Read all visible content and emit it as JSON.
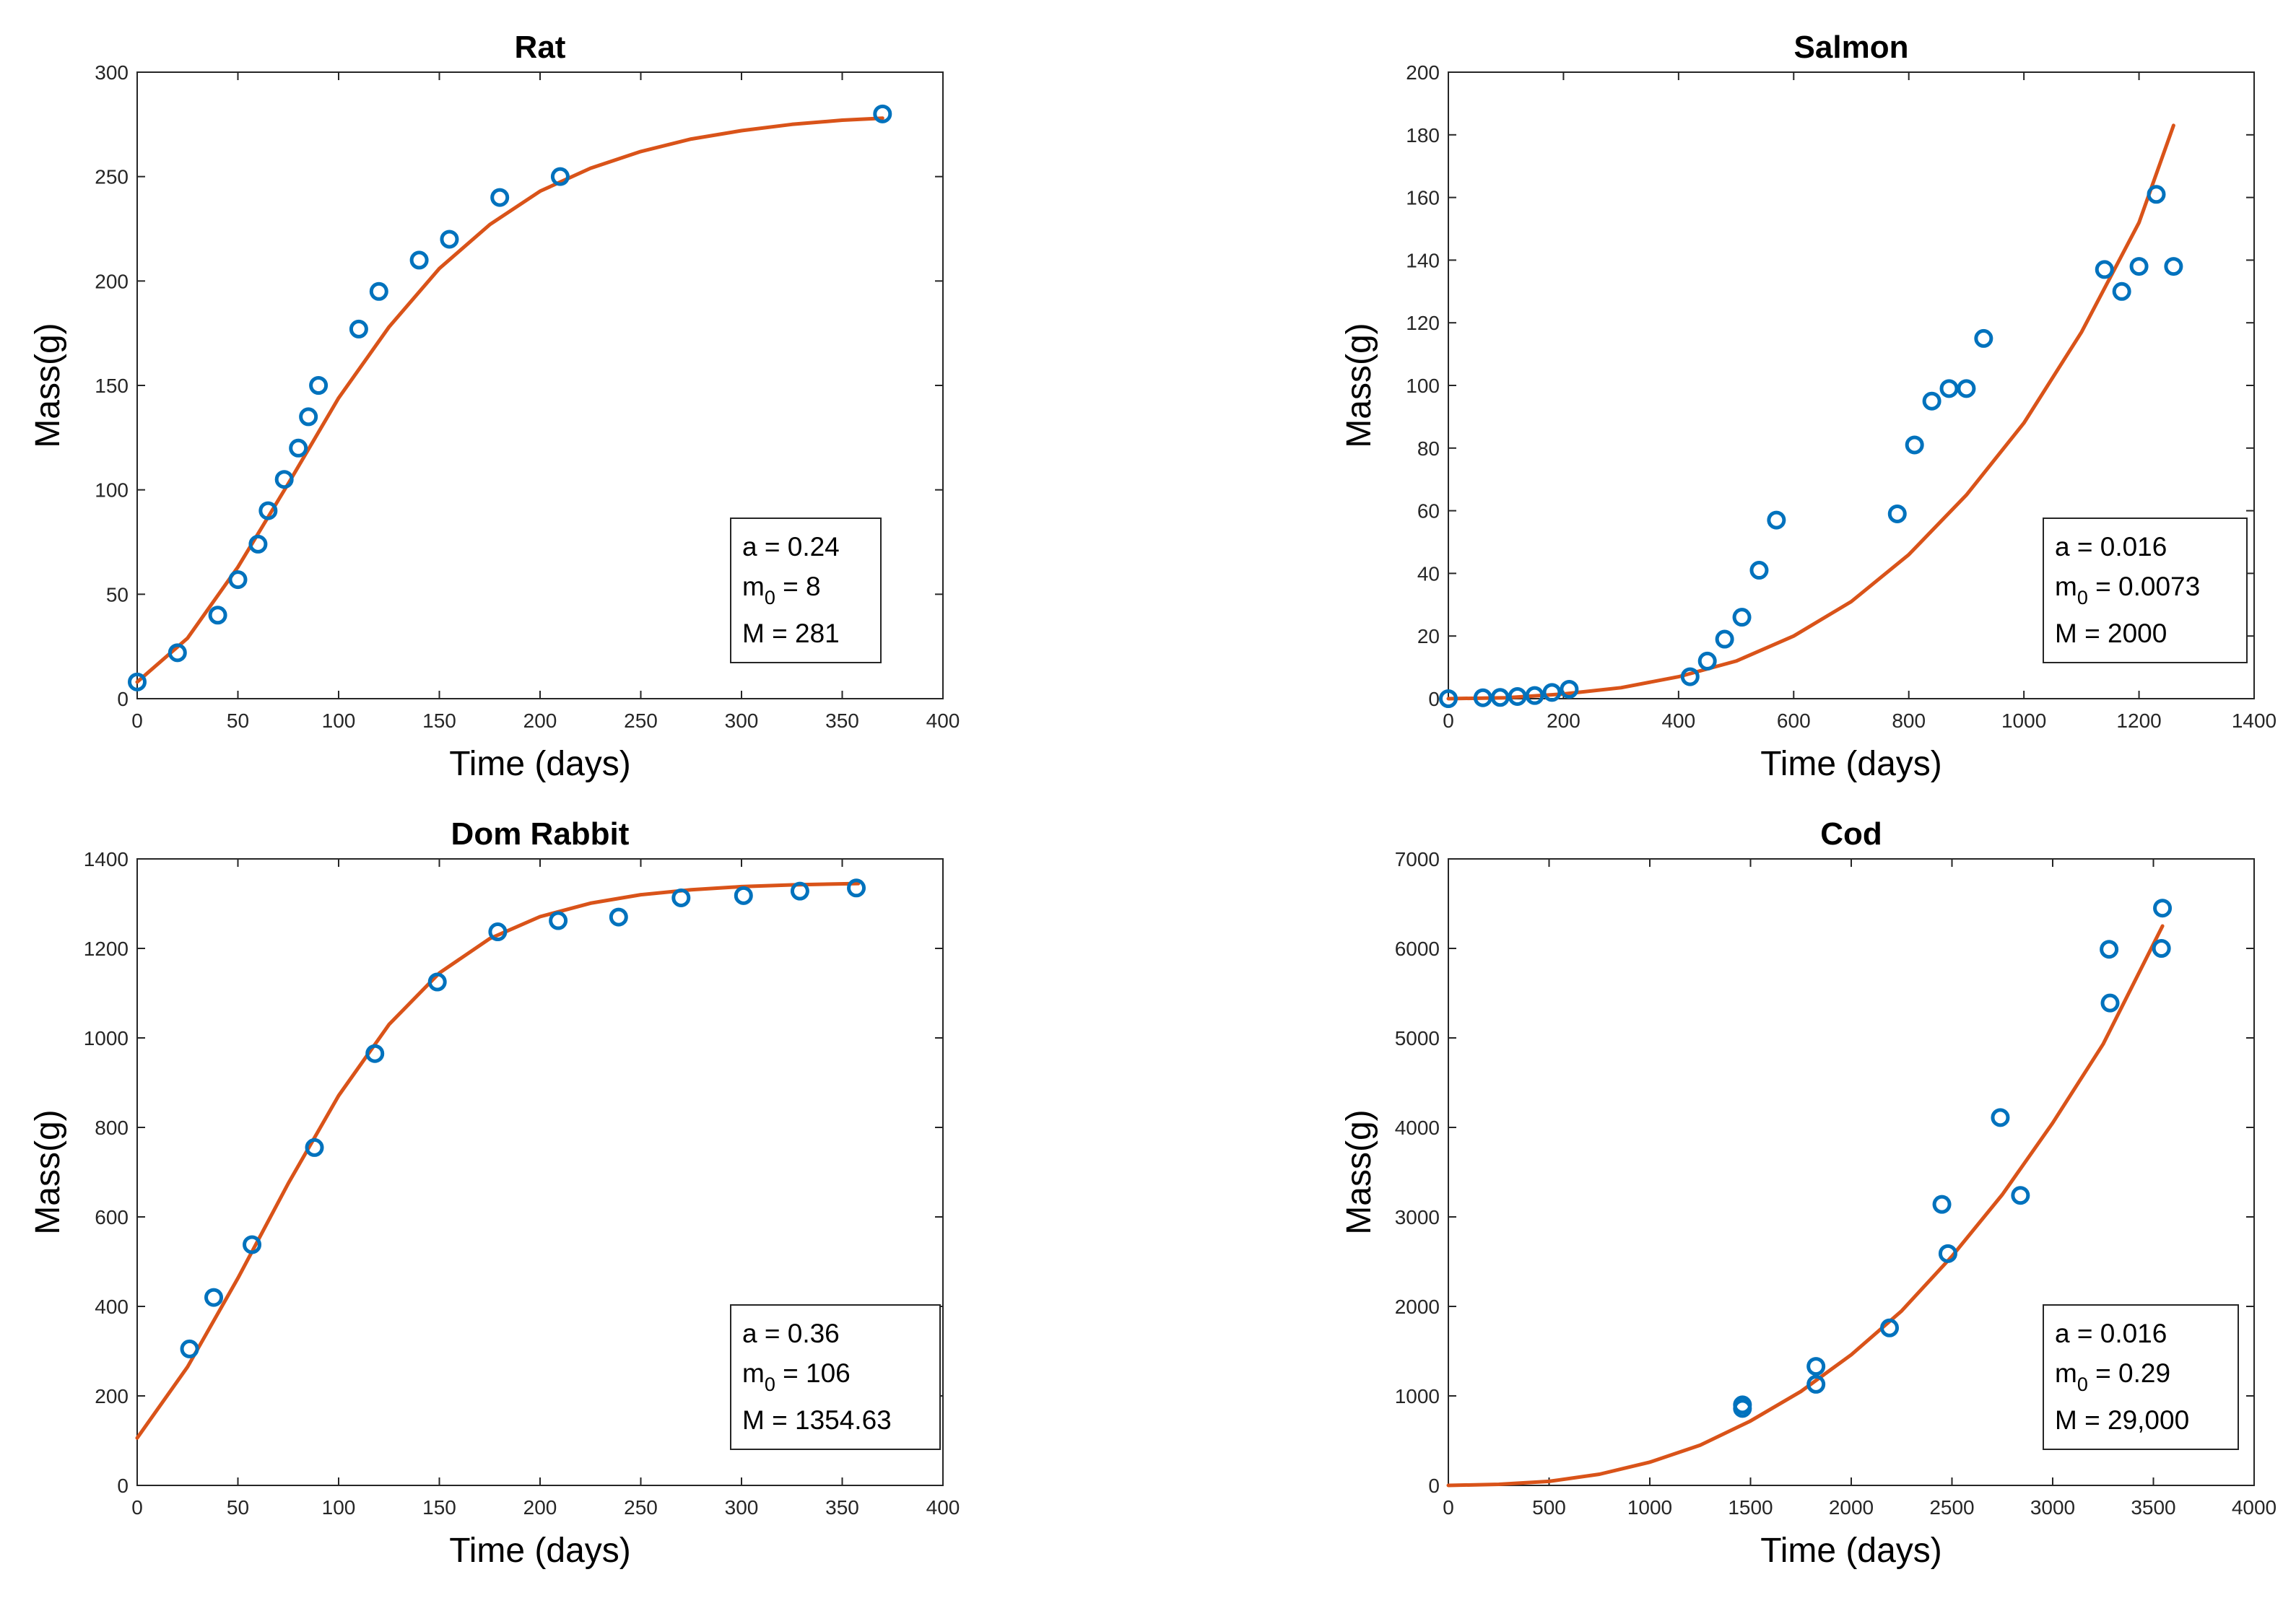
{
  "chart_data": [
    {
      "type": "scatter",
      "title": "Rat",
      "xlabel": "Time (days)",
      "ylabel": "Mass(g)",
      "xlim": [
        0,
        400
      ],
      "ylim": [
        0,
        300
      ],
      "xticks": [
        0,
        50,
        100,
        150,
        200,
        250,
        300,
        350,
        400
      ],
      "yticks": [
        0,
        50,
        100,
        150,
        200,
        250,
        300
      ],
      "xtick_labels": [
        "0",
        "50",
        "100",
        "150",
        "200",
        "250",
        "300",
        "350",
        "400"
      ],
      "ytick_labels": [
        "0",
        "50",
        "100",
        "150",
        "200",
        "250",
        "300"
      ],
      "grid": false,
      "legend": "none",
      "series": [
        {
          "kind": "points",
          "x": [
            0,
            20,
            40,
            50,
            60,
            65,
            73,
            80,
            85,
            90,
            110,
            120,
            140,
            155,
            180,
            210,
            370
          ],
          "y": [
            8,
            22,
            40,
            57,
            74,
            90,
            105,
            120,
            135,
            150,
            177,
            195,
            210,
            220,
            240,
            250,
            280
          ]
        },
        {
          "kind": "fit",
          "x": [
            0,
            25,
            50,
            75,
            100,
            125,
            150,
            175,
            200,
            225,
            250,
            275,
            300,
            325,
            350,
            370
          ],
          "y": [
            8,
            29,
            63,
            103,
            144,
            178,
            206,
            227,
            243,
            254,
            262,
            268,
            272,
            275,
            277,
            278
          ]
        }
      ],
      "annotation": {
        "a_line": "a = 0.24",
        "m_base": "m",
        "m_sub": "0",
        "m_value": " = 8",
        "M_line": "M = 281"
      }
    },
    {
      "type": "scatter",
      "title": "Salmon",
      "xlabel": "Time (days)",
      "ylabel": "Mass(g)",
      "xlim": [
        0,
        1400
      ],
      "ylim": [
        0,
        200
      ],
      "xticks": [
        0,
        200,
        400,
        600,
        800,
        1000,
        1200,
        1400
      ],
      "yticks": [
        0,
        20,
        40,
        60,
        80,
        100,
        120,
        140,
        160,
        180,
        200
      ],
      "xtick_labels": [
        "0",
        "200",
        "400",
        "600",
        "800",
        "1000",
        "1200",
        "1400"
      ],
      "ytick_labels": [
        "0",
        "20",
        "40",
        "60",
        "80",
        "100",
        "120",
        "140",
        "160",
        "180",
        "200"
      ],
      "grid": false,
      "legend": "none",
      "series": [
        {
          "kind": "points",
          "x": [
            0,
            60,
            90,
            120,
            150,
            180,
            210,
            420,
            450,
            480,
            510,
            540,
            570,
            780,
            810,
            840,
            870,
            900,
            930,
            1140,
            1170,
            1200,
            1230,
            1260
          ],
          "y": [
            0,
            0.3,
            0.4,
            0.7,
            1,
            2,
            3,
            7,
            12,
            19,
            26,
            41,
            57,
            59,
            81,
            95,
            99,
            99,
            115,
            137,
            130,
            138,
            161,
            138
          ]
        },
        {
          "kind": "fit",
          "x": [
            0,
            100,
            200,
            300,
            400,
            500,
            600,
            700,
            800,
            900,
            1000,
            1100,
            1200,
            1260
          ],
          "y": [
            0,
            0.3,
            1.5,
            3.5,
            7,
            12,
            20,
            31,
            46,
            65,
            88,
            117,
            152,
            183
          ]
        }
      ],
      "annotation": {
        "a_line": "a = 0.016",
        "m_base": "m",
        "m_sub": "0",
        "m_value": " = 0.0073",
        "M_line": "M = 2000"
      }
    },
    {
      "type": "scatter",
      "title": "Dom Rabbit",
      "xlabel": "Time (days)",
      "ylabel": "Mass(g)",
      "xlim": [
        0,
        400
      ],
      "ylim": [
        0,
        1400
      ],
      "xticks": [
        0,
        50,
        100,
        150,
        200,
        250,
        300,
        350,
        400
      ],
      "yticks": [
        0,
        200,
        400,
        600,
        800,
        1000,
        1200,
        1400
      ],
      "xtick_labels": [
        "0",
        "50",
        "100",
        "150",
        "200",
        "250",
        "300",
        "350",
        "400"
      ],
      "ytick_labels": [
        "0",
        "200",
        "400",
        "600",
        "800",
        "1000",
        "1200",
        "1400"
      ],
      "grid": false,
      "legend": "none",
      "series": [
        {
          "kind": "points",
          "x": [
            26,
            38,
            57,
            88,
            118,
            149,
            179,
            209,
            239,
            270,
            301,
            329,
            357
          ],
          "y": [
            305,
            420,
            538,
            755,
            965,
            1125,
            1237,
            1262,
            1270,
            1313,
            1318,
            1328,
            1335
          ]
        },
        {
          "kind": "fit",
          "x": [
            0,
            25,
            50,
            75,
            100,
            125,
            150,
            175,
            200,
            225,
            250,
            275,
            300,
            325,
            358
          ],
          "y": [
            106,
            265,
            463,
            675,
            871,
            1030,
            1145,
            1222,
            1271,
            1301,
            1320,
            1331,
            1338,
            1342,
            1345
          ]
        }
      ],
      "annotation": {
        "a_line": "a = 0.36",
        "m_base": "m",
        "m_sub": "0",
        "m_value": " = 106",
        "M_line": "M = 1354.63"
      }
    },
    {
      "type": "scatter",
      "title": "Cod",
      "xlabel": "Time (days)",
      "ylabel": "Mass(g)",
      "xlim": [
        0,
        4000
      ],
      "ylim": [
        0,
        7000
      ],
      "xticks": [
        0,
        500,
        1000,
        1500,
        2000,
        2500,
        3000,
        3500,
        4000
      ],
      "yticks": [
        0,
        1000,
        2000,
        3000,
        4000,
        5000,
        6000,
        7000
      ],
      "xtick_labels": [
        "0",
        "500",
        "1000",
        "1500",
        "2000",
        "2500",
        "3000",
        "3500",
        "4000"
      ],
      "ytick_labels": [
        "0",
        "1000",
        "2000",
        "3000",
        "4000",
        "5000",
        "6000",
        "7000"
      ],
      "grid": false,
      "legend": "none",
      "series": [
        {
          "kind": "points",
          "x": [
            1460,
            1460,
            1825,
            1825,
            2190,
            2450,
            2480,
            2740,
            2840,
            3280,
            3285,
            3540,
            3545
          ],
          "y": [
            860,
            900,
            1130,
            1330,
            1760,
            3140,
            2590,
            4110,
            3240,
            5990,
            5390,
            6000,
            6450
          ]
        },
        {
          "kind": "fit",
          "x": [
            0,
            250,
            500,
            750,
            1000,
            1250,
            1500,
            1750,
            2000,
            2250,
            2500,
            2750,
            3000,
            3250,
            3545
          ],
          "y": [
            0,
            12,
            45,
            125,
            260,
            450,
            720,
            1050,
            1460,
            1950,
            2560,
            3250,
            4050,
            4930,
            6250
          ]
        }
      ],
      "annotation": {
        "a_line": "a = 0.016",
        "m_base": "m",
        "m_sub": "0",
        "m_value": " = 0.29",
        "M_line": "M = 29,000"
      }
    }
  ],
  "colors": {
    "points": "#0072BD",
    "fit": "#D95319",
    "axes": "#262626",
    "text": "#000000"
  }
}
